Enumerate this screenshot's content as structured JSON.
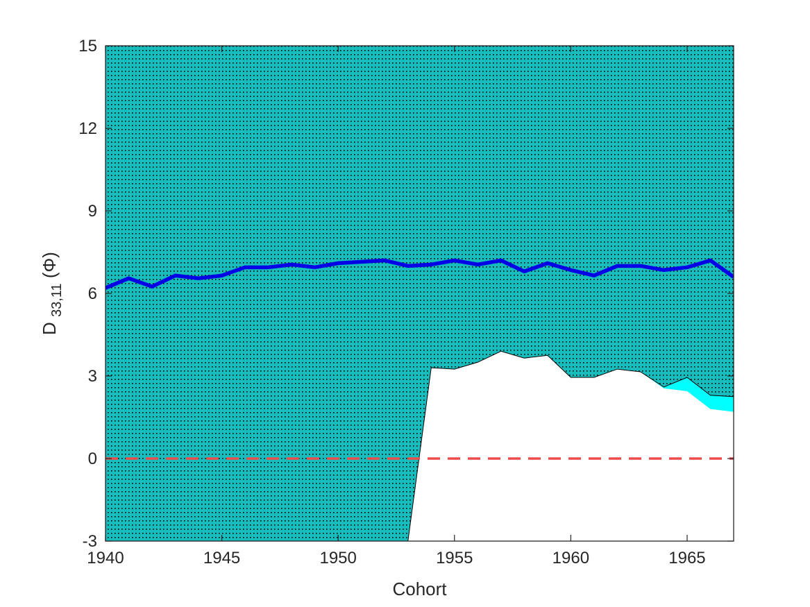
{
  "chart_data": {
    "type": "line",
    "title": "",
    "xlabel": "Cohort",
    "ylabel": {
      "base": "D",
      "subscript": "33,11",
      "suffix": "(Φ)"
    },
    "xlim": [
      1940,
      1967
    ],
    "ylim": [
      -3,
      15
    ],
    "xticks": [
      1940,
      1945,
      1950,
      1955,
      1960,
      1965
    ],
    "yticks": [
      -3,
      0,
      3,
      6,
      9,
      12,
      15
    ],
    "grid": false,
    "legend": "none",
    "colors": {
      "band_fill": "#17bcbc",
      "band_stipple": "#000000",
      "band_edge": "#00ffff",
      "main_line": "#0000e6",
      "zero_line": "#f04b4b",
      "axes": "#262626"
    },
    "series": [
      {
        "role": "estimate",
        "style": "solid-thick",
        "x": [
          1940,
          1941,
          1942,
          1943,
          1944,
          1945,
          1946,
          1947,
          1948,
          1949,
          1950,
          1951,
          1952,
          1953,
          1954,
          1955,
          1956,
          1957,
          1958,
          1959,
          1960,
          1961,
          1962,
          1963,
          1964,
          1965,
          1966,
          1967
        ],
        "y": [
          6.2,
          6.55,
          6.25,
          6.65,
          6.55,
          6.65,
          6.95,
          6.95,
          7.05,
          6.95,
          7.1,
          7.15,
          7.2,
          7.0,
          7.05,
          7.2,
          7.05,
          7.2,
          6.8,
          7.1,
          6.85,
          6.65,
          7.0,
          7.0,
          6.85,
          6.95,
          7.2,
          6.6
        ]
      },
      {
        "role": "reference",
        "style": "dashed",
        "x": [
          1940,
          1967
        ],
        "y": [
          0,
          0
        ]
      }
    ],
    "band": {
      "role": "set-upper-and-lower-bounds",
      "x": [
        1940,
        1941,
        1942,
        1943,
        1944,
        1945,
        1946,
        1947,
        1948,
        1949,
        1950,
        1951,
        1952,
        1953,
        1954,
        1955,
        1956,
        1957,
        1958,
        1959,
        1960,
        1961,
        1962,
        1963,
        1964,
        1965,
        1966,
        1967
      ],
      "upper": [
        15,
        15,
        15,
        15,
        15,
        15,
        15,
        15,
        15,
        15,
        15,
        15,
        15,
        15,
        15,
        15,
        15,
        15,
        15,
        15,
        15,
        15,
        15,
        15,
        15,
        15,
        15,
        15
      ],
      "lower_outer": [
        -3,
        -3,
        -3,
        -3,
        -3,
        -3,
        -3,
        -3,
        -3,
        -3,
        -3,
        -3,
        -3,
        -3,
        3.3,
        3.25,
        3.5,
        3.9,
        3.65,
        3.75,
        2.95,
        2.95,
        3.25,
        3.15,
        2.55,
        2.45,
        1.8,
        1.7
      ],
      "lower_inner": [
        -3,
        -3,
        -3,
        -3,
        -3,
        -3,
        -3,
        -3,
        -3,
        -3,
        -3,
        -3,
        -3,
        -3,
        3.3,
        3.25,
        3.5,
        3.9,
        3.65,
        3.75,
        2.95,
        2.95,
        3.25,
        3.15,
        2.6,
        2.95,
        2.3,
        2.25
      ]
    }
  }
}
